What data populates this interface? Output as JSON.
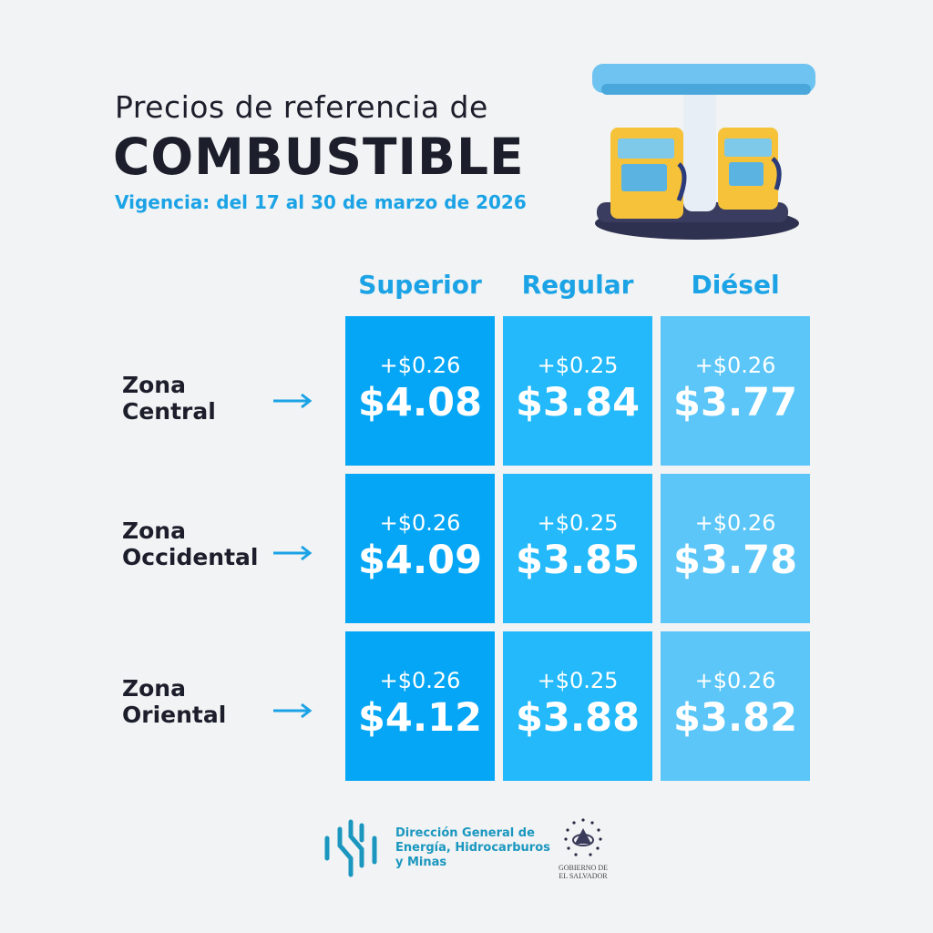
{
  "header": {
    "title_line1": "Precios de referencia de",
    "title_line2": "COMBUSTIBLE",
    "validity": "Vigencia: del 17 al 30 de marzo de 2026"
  },
  "columns": [
    {
      "label": "Superior",
      "color": "#05a6f5"
    },
    {
      "label": "Regular",
      "color": "#23b9fa"
    },
    {
      "label": "Diésel",
      "color": "#5bc6f7"
    }
  ],
  "rows": [
    {
      "zone_line1": "Zona",
      "zone_line2": "Central",
      "cells": [
        {
          "change": "+$0.26",
          "price": "$4.08"
        },
        {
          "change": "+$0.25",
          "price": "$3.84"
        },
        {
          "change": "+$0.26",
          "price": "$3.77"
        }
      ]
    },
    {
      "zone_line1": "Zona",
      "zone_line2": "Occidental",
      "cells": [
        {
          "change": "+$0.26",
          "price": "$4.09"
        },
        {
          "change": "+$0.25",
          "price": "$3.85"
        },
        {
          "change": "+$0.26",
          "price": "$3.78"
        }
      ]
    },
    {
      "zone_line1": "Zona",
      "zone_line2": "Oriental",
      "cells": [
        {
          "change": "+$0.26",
          "price": "$4.12"
        },
        {
          "change": "+$0.25",
          "price": "$3.88"
        },
        {
          "change": "+$0.26",
          "price": "$3.82"
        }
      ]
    }
  ],
  "footer": {
    "agency_line1": "Dirección General de",
    "agency_line2": "Energía, Hidrocarburos",
    "agency_line3": "y Minas",
    "gov_line1": "GOBIERNO DE",
    "gov_line2": "EL SALVADOR"
  },
  "colors": {
    "background": "#f1f3f4",
    "accent": "#1ba3e6",
    "text": "#1c1f2b"
  }
}
